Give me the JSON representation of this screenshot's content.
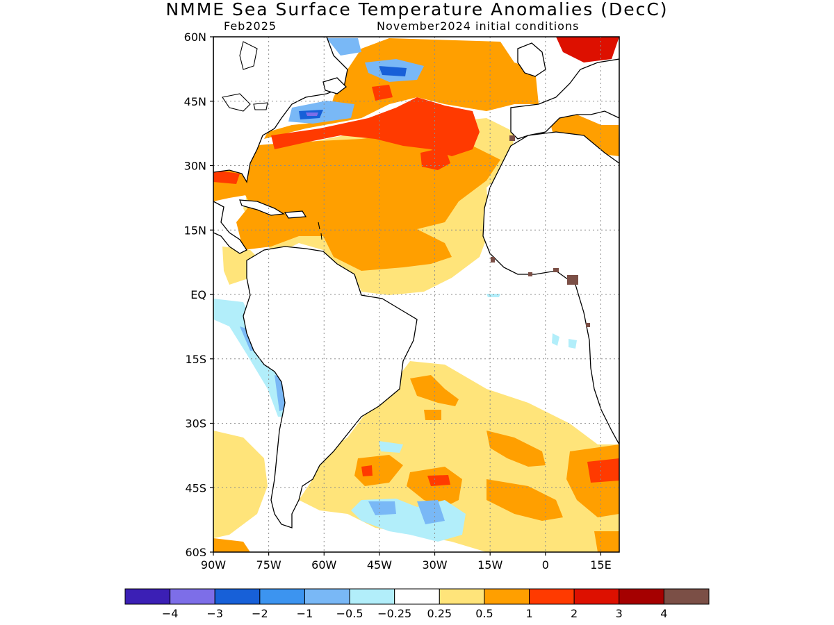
{
  "title": "NMME Sea Surface Temperature Anomalies (DecC)",
  "subtitle_left": "Feb2025",
  "subtitle_right": "November2024 initial conditions",
  "map": {
    "lon_range": [
      -90,
      20
    ],
    "lat_range": [
      -60,
      60
    ],
    "lat_ticks": [
      {
        "value": 60,
        "label": "60N"
      },
      {
        "value": 45,
        "label": "45N"
      },
      {
        "value": 30,
        "label": "30N"
      },
      {
        "value": 15,
        "label": "15N"
      },
      {
        "value": 0,
        "label": "EQ"
      },
      {
        "value": -15,
        "label": "15S"
      },
      {
        "value": -30,
        "label": "30S"
      },
      {
        "value": -45,
        "label": "45S"
      },
      {
        "value": -60,
        "label": "60S"
      }
    ],
    "lon_ticks": [
      {
        "value": -90,
        "label": "90W"
      },
      {
        "value": -75,
        "label": "75W"
      },
      {
        "value": -60,
        "label": "60W"
      },
      {
        "value": -45,
        "label": "45W"
      },
      {
        "value": -30,
        "label": "30W"
      },
      {
        "value": -15,
        "label": "15W"
      },
      {
        "value": 0,
        "label": "0"
      },
      {
        "value": 15,
        "label": "15E"
      }
    ]
  },
  "colorbar": {
    "colors": [
      "#3b1fb5",
      "#7d6ee8",
      "#1760d8",
      "#3c94f0",
      "#79b8f6",
      "#b2eefa",
      "#ffffff",
      "#ffe47a",
      "#ff9f00",
      "#ff3a00",
      "#dd1000",
      "#a50000",
      "#7b4f46"
    ],
    "labels": [
      "−4",
      "−3",
      "−2",
      "−1",
      "−0.5",
      "−0.25",
      "0.25",
      "0.5",
      "1",
      "2",
      "3",
      "4"
    ]
  },
  "colors": {
    "land": "#ffffff",
    "coast": "#000000",
    "frame": "#000000",
    "grid": "#8c8c8c"
  }
}
